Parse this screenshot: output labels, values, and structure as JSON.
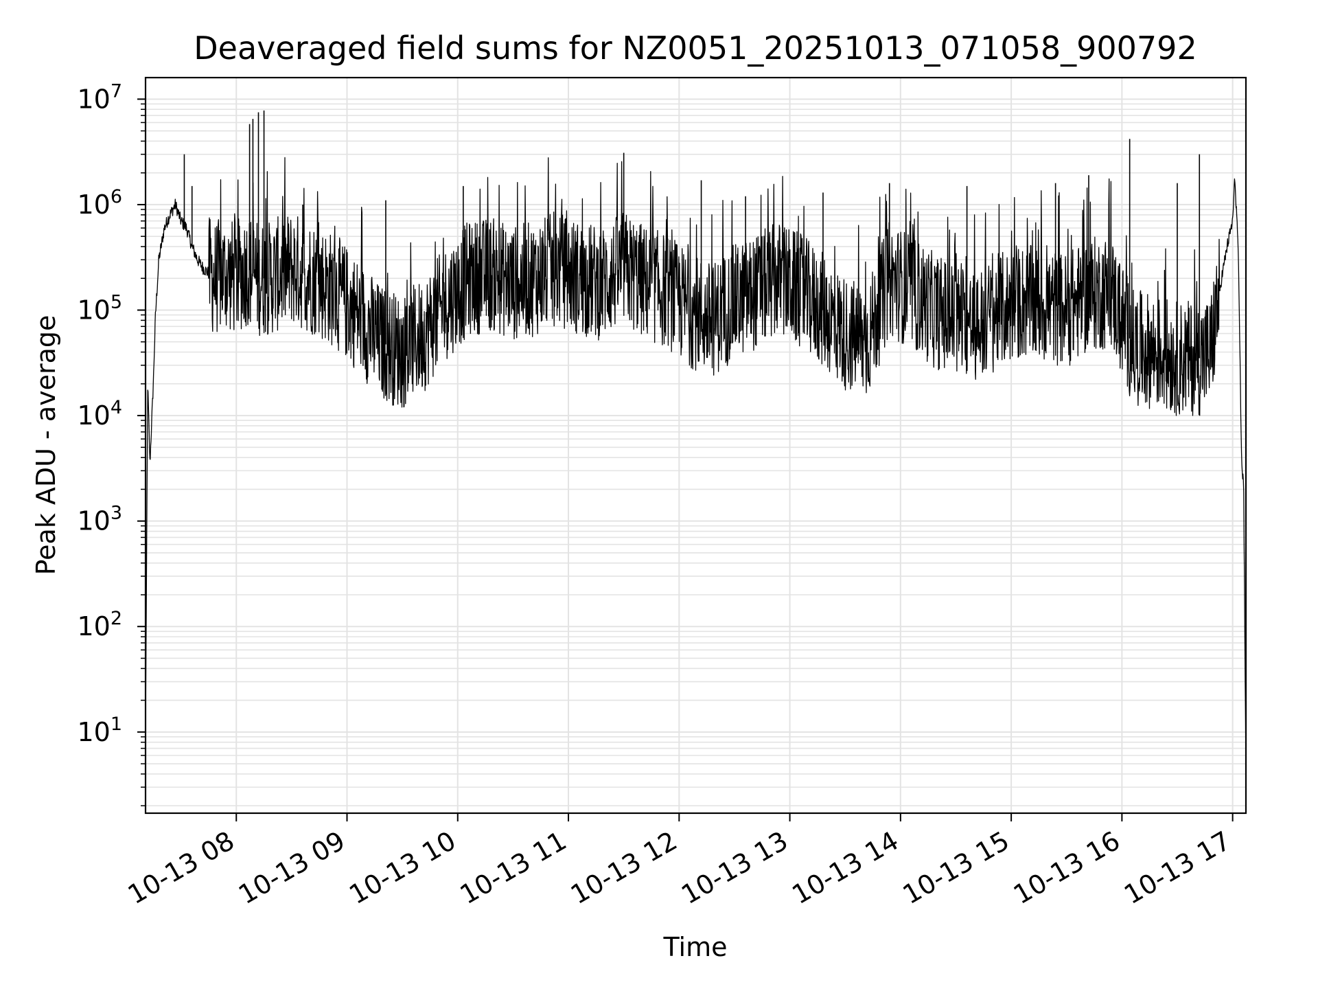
{
  "chart_data": {
    "type": "line",
    "title": "Deaveraged field sums for NZ0051_20251013_071058_900792",
    "xlabel": "Time",
    "ylabel": "Peak ADU - average",
    "yscale": "log",
    "ylim": [
      1.7,
      16000000
    ],
    "xlim_hours": [
      7.18,
      17.12
    ],
    "x_ticks": [
      {
        "label": "10-13 08",
        "hour": 8
      },
      {
        "label": "10-13 09",
        "hour": 9
      },
      {
        "label": "10-13 10",
        "hour": 10
      },
      {
        "label": "10-13 11",
        "hour": 11
      },
      {
        "label": "10-13 12",
        "hour": 12
      },
      {
        "label": "10-13 13",
        "hour": 13
      },
      {
        "label": "10-13 14",
        "hour": 14
      },
      {
        "label": "10-13 15",
        "hour": 15
      },
      {
        "label": "10-13 16",
        "hour": 16
      },
      {
        "label": "10-13 17",
        "hour": 17
      }
    ],
    "y_ticks": [
      {
        "base": "10",
        "exp": "1",
        "value": 10
      },
      {
        "base": "10",
        "exp": "2",
        "value": 100
      },
      {
        "base": "10",
        "exp": "3",
        "value": 1000
      },
      {
        "base": "10",
        "exp": "4",
        "value": 10000
      },
      {
        "base": "10",
        "exp": "5",
        "value": 100000
      },
      {
        "base": "10",
        "exp": "6",
        "value": 1000000
      },
      {
        "base": "10",
        "exp": "7",
        "value": 10000000
      }
    ],
    "grid": true,
    "series": [
      {
        "name": "deaveraged field sum",
        "color": "#000000",
        "x_hours": [
          7.18,
          7.2,
          7.22,
          7.25,
          7.27,
          7.3,
          7.35,
          7.4,
          7.45,
          7.5,
          7.55,
          7.6,
          7.65,
          7.7,
          7.8,
          7.9,
          8.0,
          8.1,
          8.2,
          8.3,
          8.5,
          8.7,
          8.9,
          9.1,
          9.3,
          9.5,
          9.7,
          9.9,
          10.1,
          10.3,
          10.5,
          10.7,
          10.9,
          11.1,
          11.3,
          11.5,
          11.7,
          11.9,
          12.1,
          12.3,
          12.5,
          12.7,
          12.9,
          13.1,
          13.3,
          13.5,
          13.7,
          13.9,
          14.1,
          14.3,
          14.5,
          14.7,
          14.9,
          15.1,
          15.3,
          15.5,
          15.7,
          15.9,
          16.1,
          16.3,
          16.5,
          16.7,
          16.8,
          16.9,
          16.95,
          17.0,
          17.02,
          17.05,
          17.08,
          17.1,
          17.12
        ],
        "values": [
          10,
          20000,
          3500,
          20000,
          90000,
          300000,
          600000,
          800000,
          1000000,
          700000,
          600000,
          400000,
          300000,
          250000,
          200000,
          220000,
          200000,
          250000,
          200000,
          200000,
          250000,
          200000,
          150000,
          90000,
          50000,
          40000,
          60000,
          120000,
          200000,
          220000,
          180000,
          200000,
          250000,
          200000,
          180000,
          250000,
          180000,
          150000,
          100000,
          80000,
          120000,
          150000,
          200000,
          150000,
          100000,
          60000,
          50000,
          200000,
          150000,
          100000,
          80000,
          70000,
          100000,
          120000,
          110000,
          100000,
          140000,
          150000,
          45000,
          40000,
          35000,
          35000,
          40000,
          200000,
          400000,
          700000,
          1800000,
          400000,
          4000,
          2000,
          4
        ]
      }
    ],
    "spikes": [
      {
        "hour": 7.53,
        "value": 3000000
      },
      {
        "hour": 7.6,
        "value": 1500000
      },
      {
        "hour": 8.12,
        "value": 5800000
      },
      {
        "hour": 8.15,
        "value": 6500000
      },
      {
        "hour": 8.2,
        "value": 7500000
      },
      {
        "hour": 8.25,
        "value": 7800000
      },
      {
        "hour": 8.6,
        "value": 1000000
      },
      {
        "hour": 9.35,
        "value": 1100000
      },
      {
        "hour": 10.05,
        "value": 1500000
      },
      {
        "hour": 11.5,
        "value": 3100000
      },
      {
        "hour": 12.2,
        "value": 1700000
      },
      {
        "hour": 12.6,
        "value": 1200000
      },
      {
        "hour": 13.3,
        "value": 1300000
      },
      {
        "hour": 13.9,
        "value": 1600000
      },
      {
        "hour": 14.6,
        "value": 1500000
      },
      {
        "hour": 15.4,
        "value": 1600000
      },
      {
        "hour": 15.7,
        "value": 1900000
      },
      {
        "hour": 16.07,
        "value": 4200000
      },
      {
        "hour": 16.5,
        "value": 1600000
      },
      {
        "hour": 16.7,
        "value": 3000000
      }
    ]
  }
}
